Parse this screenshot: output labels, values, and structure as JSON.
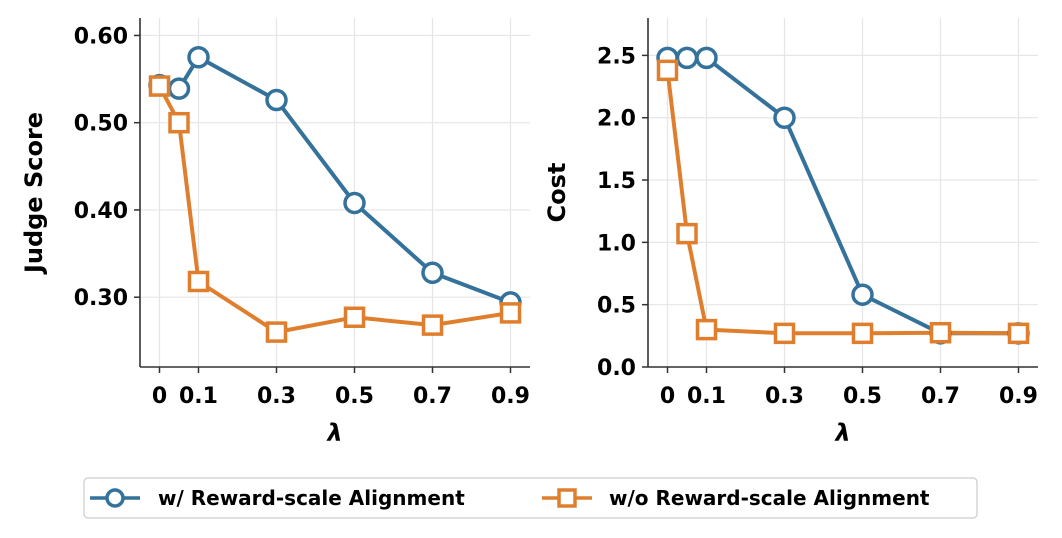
{
  "chart_data": [
    {
      "type": "line",
      "ylabel": "Judge Score",
      "xlabel": "λ",
      "xticks": [
        0,
        0.1,
        0.3,
        0.5,
        0.7,
        0.9
      ],
      "xtick_labels": [
        "0",
        "0.1",
        "0.3",
        "0.5",
        "0.7",
        "0.9"
      ],
      "yticks": [
        0.3,
        0.4,
        0.5,
        0.6
      ],
      "ytick_labels": [
        "0.30",
        "0.40",
        "0.50",
        "0.60"
      ],
      "xlim": [
        -0.05,
        0.95
      ],
      "ylim": [
        0.22,
        0.62
      ],
      "grid": true,
      "series": [
        {
          "name": "w/ Reward-scale Alignment",
          "marker": "circle",
          "color": "#34729b",
          "x": [
            0,
            0.05,
            0.1,
            0.3,
            0.5,
            0.7,
            0.9
          ],
          "y": [
            0.543,
            0.539,
            0.575,
            0.526,
            0.408,
            0.328,
            0.294
          ]
        },
        {
          "name": "w/o Reward-scale Alignment",
          "marker": "square",
          "color": "#df7f2e",
          "x": [
            0,
            0.05,
            0.1,
            0.3,
            0.5,
            0.7,
            0.9
          ],
          "y": [
            0.542,
            0.5,
            0.318,
            0.26,
            0.277,
            0.268,
            0.282
          ]
        }
      ]
    },
    {
      "type": "line",
      "ylabel": "Cost",
      "xlabel": "λ",
      "xticks": [
        0,
        0.1,
        0.3,
        0.5,
        0.7,
        0.9
      ],
      "xtick_labels": [
        "0",
        "0.1",
        "0.3",
        "0.5",
        "0.7",
        "0.9"
      ],
      "yticks": [
        0,
        0.5,
        1.0,
        1.5,
        2.0,
        2.5
      ],
      "ytick_labels": [
        "0.0",
        "0.5",
        "1.0",
        "1.5",
        "2.0",
        "2.5"
      ],
      "xlim": [
        -0.05,
        0.95
      ],
      "ylim": [
        0,
        2.8
      ],
      "grid": true,
      "series": [
        {
          "name": "w/ Reward-scale Alignment",
          "marker": "circle",
          "color": "#34729b",
          "x": [
            0,
            0.05,
            0.1,
            0.3,
            0.5,
            0.7,
            0.9
          ],
          "y": [
            2.48,
            2.48,
            2.48,
            2.0,
            0.58,
            0.27,
            0.27
          ]
        },
        {
          "name": "w/o Reward-scale Alignment",
          "marker": "square",
          "color": "#df7f2e",
          "x": [
            0,
            0.05,
            0.1,
            0.3,
            0.5,
            0.7,
            0.9
          ],
          "y": [
            2.38,
            1.07,
            0.3,
            0.27,
            0.27,
            0.275,
            0.27
          ]
        }
      ]
    }
  ],
  "legend": {
    "position": "bottom-center",
    "entries": [
      {
        "label": "w/ Reward-scale Alignment",
        "marker": "circle",
        "color": "#34729b"
      },
      {
        "label": "w/o Reward-scale Alignment",
        "marker": "square",
        "color": "#df7f2e"
      }
    ]
  }
}
